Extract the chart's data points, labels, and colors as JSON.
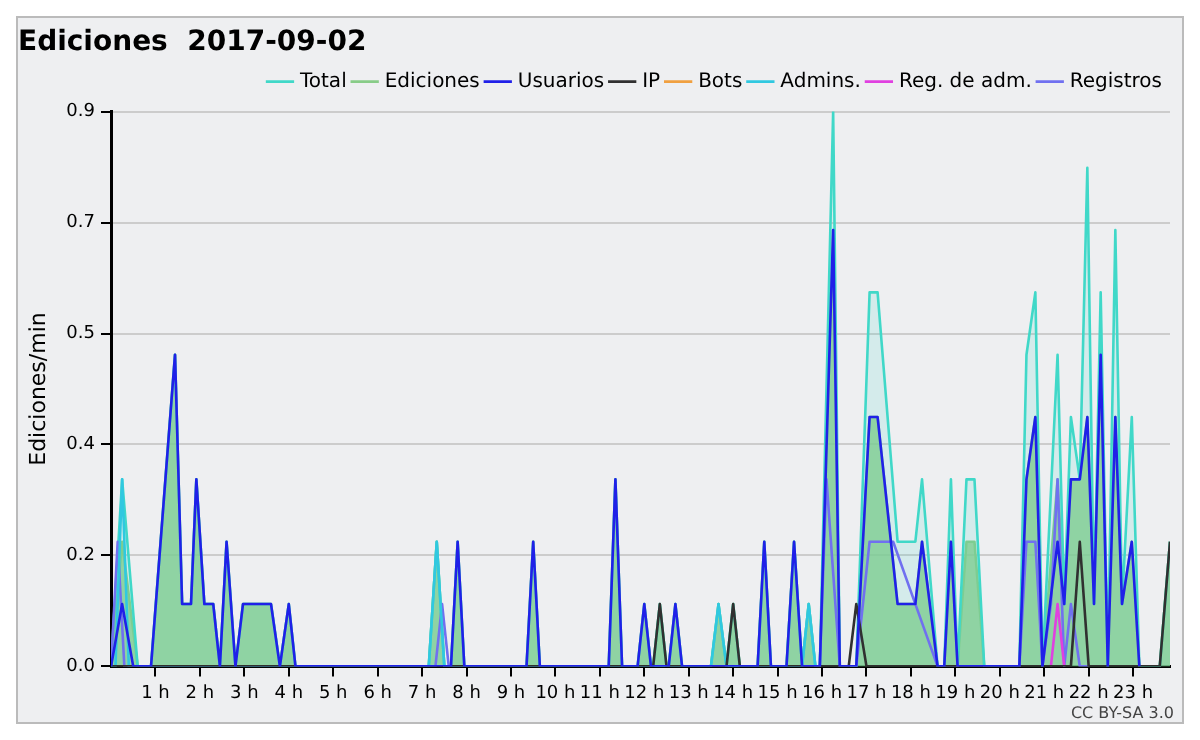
{
  "chart_data": {
    "type": "line",
    "title": "Ediciones  2017-09-02",
    "ylabel": "Ediciones/min",
    "annotations": [
      "CC BY-SA 3.0"
    ],
    "xlim": [
      0,
      23.83
    ],
    "xticks": [
      {
        "value": 1,
        "label": "1 h"
      },
      {
        "value": 2,
        "label": "2 h"
      },
      {
        "value": 3,
        "label": "3 h"
      },
      {
        "value": 4,
        "label": "4 h"
      },
      {
        "value": 5,
        "label": "5 h"
      },
      {
        "value": 6,
        "label": "6 h"
      },
      {
        "value": 7,
        "label": "7 h"
      },
      {
        "value": 8,
        "label": "8 h"
      },
      {
        "value": 9,
        "label": "9 h"
      },
      {
        "value": 10,
        "label": "10 h"
      },
      {
        "value": 11,
        "label": "11 h"
      },
      {
        "value": 12,
        "label": "12 h"
      },
      {
        "value": 13,
        "label": "13 h"
      },
      {
        "value": 14,
        "label": "14 h"
      },
      {
        "value": 15,
        "label": "15 h"
      },
      {
        "value": 16,
        "label": "16 h"
      },
      {
        "value": 17,
        "label": "17 h"
      },
      {
        "value": 18,
        "label": "18 h"
      },
      {
        "value": 19,
        "label": "19 h"
      },
      {
        "value": 20,
        "label": "20 h"
      },
      {
        "value": 21,
        "label": "21 h"
      },
      {
        "value": 22,
        "label": "22 h"
      },
      {
        "value": 23,
        "label": "23 h"
      }
    ],
    "ylim": [
      0,
      0.89
    ],
    "yticks": [
      {
        "value": 0,
        "label": "0.0"
      },
      {
        "value": 0.178,
        "label": "0.2"
      },
      {
        "value": 0.356,
        "label": "0.4"
      },
      {
        "value": 0.534,
        "label": "0.5"
      },
      {
        "value": 0.712,
        "label": "0.7"
      },
      {
        "value": 0.89,
        "label": "0.9"
      }
    ],
    "grid": "y",
    "legend": "top right",
    "marker": "none",
    "line_style": "solid",
    "series": [
      {
        "name": "Total",
        "type": "area",
        "color": "#40d8c8",
        "x": [
          0,
          0.25,
          0.6,
          0.9,
          1.44,
          1.6,
          1.8,
          1.92,
          2.1,
          2.3,
          2.45,
          2.6,
          2.8,
          2.97,
          3.6,
          3.8,
          4.0,
          4.15,
          7.15,
          7.33,
          7.5,
          7.65,
          7.8,
          7.95,
          9.35,
          9.5,
          9.65,
          11.2,
          11.35,
          11.5,
          11.85,
          12.0,
          12.15,
          12.2,
          12.35,
          12.5,
          12.55,
          12.7,
          12.85,
          13.5,
          13.67,
          13.85,
          14.0,
          14.15,
          14.55,
          14.7,
          14.85,
          15.2,
          15.37,
          15.55,
          15.7,
          15.85,
          15.95,
          16.25,
          16.4,
          16.77,
          17.07,
          17.25,
          17.7,
          18.1,
          18.25,
          18.6,
          18.75,
          18.9,
          19.05,
          19.25,
          19.43,
          19.65,
          20.44,
          20.6,
          20.8,
          20.96,
          21.3,
          21.45,
          21.6,
          21.8,
          21.97,
          22.12,
          22.27,
          22.43,
          22.6,
          22.75,
          22.97,
          23.14,
          23.6,
          23.83
        ],
        "values": [
          0,
          0.3,
          0,
          0,
          0.5,
          0.1,
          0.1,
          0.3,
          0.1,
          0.1,
          0,
          0.2,
          0,
          0.1,
          0.1,
          0,
          0.1,
          0,
          0,
          0.2,
          0,
          0,
          0.2,
          0,
          0,
          0.2,
          0,
          0,
          0.3,
          0,
          0,
          0.1,
          0,
          0,
          0.1,
          0,
          0,
          0.1,
          0,
          0,
          0.1,
          0,
          0.1,
          0,
          0,
          0.2,
          0,
          0,
          0.2,
          0,
          0.1,
          0,
          0,
          0.89,
          0,
          0,
          0.6,
          0.6,
          0.2,
          0.2,
          0.3,
          0,
          0,
          0.3,
          0,
          0.3,
          0.3,
          0,
          0,
          0.5,
          0.6,
          0,
          0.5,
          0.1,
          0.4,
          0.3,
          0.8,
          0.1,
          0.6,
          0,
          0.7,
          0.1,
          0.4,
          0,
          0,
          0.2
        ]
      },
      {
        "name": "Ediciones",
        "type": "area",
        "color": "#88cc88",
        "x": [
          0,
          0.25,
          0.6,
          0.9,
          1.44,
          1.6,
          1.8,
          1.92,
          2.1,
          2.3,
          2.45,
          2.6,
          2.8,
          2.97,
          3.6,
          3.8,
          4.0,
          4.15,
          7.15,
          7.33,
          7.5,
          7.65,
          7.8,
          7.95,
          9.35,
          9.5,
          9.65,
          11.2,
          11.35,
          11.5,
          11.85,
          12.0,
          12.15,
          12.2,
          12.35,
          12.5,
          12.55,
          12.7,
          12.85,
          13.5,
          13.67,
          13.85,
          14.0,
          14.15,
          14.55,
          14.7,
          14.85,
          15.2,
          15.37,
          15.55,
          15.7,
          15.85,
          15.95,
          16.25,
          16.4,
          16.77,
          17.07,
          17.25,
          17.7,
          18.1,
          18.25,
          18.6,
          18.75,
          18.9,
          19.05,
          19.25,
          19.43,
          19.65,
          20.44,
          20.6,
          20.8,
          20.96,
          21.3,
          21.45,
          21.6,
          21.8,
          21.97,
          22.12,
          22.27,
          22.43,
          22.6,
          22.75,
          22.97,
          23.14,
          23.6,
          23.83
        ],
        "values": [
          0,
          0.2,
          0,
          0,
          0.5,
          0.1,
          0.1,
          0.3,
          0.1,
          0.1,
          0,
          0.2,
          0,
          0.1,
          0.1,
          0,
          0.1,
          0,
          0,
          0.2,
          0,
          0,
          0.2,
          0,
          0,
          0.2,
          0,
          0,
          0.3,
          0,
          0,
          0.1,
          0,
          0,
          0.1,
          0,
          0,
          0.1,
          0,
          0,
          0.1,
          0,
          0.1,
          0,
          0,
          0.2,
          0,
          0,
          0.2,
          0,
          0.1,
          0,
          0,
          0.7,
          0,
          0,
          0.4,
          0.4,
          0.1,
          0.1,
          0.2,
          0,
          0,
          0.2,
          0,
          0.2,
          0.2,
          0,
          0,
          0.3,
          0.4,
          0,
          0.3,
          0.1,
          0.3,
          0.3,
          0.4,
          0.1,
          0.5,
          0,
          0.4,
          0.1,
          0.2,
          0,
          0,
          0.2
        ]
      },
      {
        "name": "Usuarios",
        "type": "line",
        "color": "#2020e8",
        "x": [
          0,
          0.25,
          0.5,
          0.9,
          1.44,
          1.6,
          1.8,
          1.92,
          2.1,
          2.3,
          2.45,
          2.6,
          2.8,
          2.97,
          3.6,
          3.8,
          4.0,
          4.15,
          7.65,
          7.8,
          7.95,
          9.35,
          9.5,
          9.65,
          11.2,
          11.35,
          11.5,
          11.85,
          12.0,
          12.15,
          12.55,
          12.7,
          12.85,
          14.55,
          14.7,
          14.85,
          15.2,
          15.37,
          15.55,
          15.95,
          16.25,
          16.4,
          16.77,
          17.07,
          17.25,
          17.7,
          18.1,
          18.25,
          18.6,
          18.75,
          18.9,
          19.05,
          20.44,
          20.6,
          20.8,
          20.96,
          21.3,
          21.45,
          21.6,
          21.8,
          21.97,
          22.12,
          22.27,
          22.43,
          22.6,
          22.75,
          22.97,
          23.14
        ],
        "values": [
          0,
          0.1,
          0,
          0,
          0.5,
          0.1,
          0.1,
          0.3,
          0.1,
          0.1,
          0,
          0.2,
          0,
          0.1,
          0.1,
          0,
          0.1,
          0,
          0,
          0.2,
          0,
          0,
          0.2,
          0,
          0,
          0.3,
          0,
          0,
          0.1,
          0,
          0,
          0.1,
          0,
          0,
          0.2,
          0,
          0,
          0.2,
          0,
          0,
          0.7,
          0,
          0,
          0.4,
          0.4,
          0.1,
          0.1,
          0.2,
          0,
          0,
          0.2,
          0,
          0,
          0.3,
          0.4,
          0,
          0.2,
          0.1,
          0.3,
          0.3,
          0.4,
          0.1,
          0.5,
          0,
          0.4,
          0.1,
          0.2,
          0
        ]
      },
      {
        "name": "IP",
        "type": "line",
        "color": "#303030",
        "x": [
          0,
          12.2,
          12.35,
          12.5,
          13.85,
          14.0,
          14.15,
          16.6,
          16.77,
          17.0,
          21.6,
          21.8,
          22.0,
          23.6,
          23.83
        ],
        "values": [
          0,
          0,
          0.1,
          0,
          0,
          0.1,
          0,
          0,
          0.1,
          0,
          0,
          0.2,
          0,
          0,
          0.2
        ]
      },
      {
        "name": "Bots",
        "type": "line",
        "color": "#f0a040"
      },
      {
        "name": "Admins.",
        "type": "line",
        "color": "#30c8e0",
        "x": [
          0,
          0.1,
          0.25,
          0.4,
          7.15,
          7.33,
          7.5,
          13.5,
          13.67,
          13.85,
          15.55,
          15.7,
          15.85
        ],
        "values": [
          0,
          0,
          0.3,
          0,
          0,
          0.2,
          0,
          0,
          0.1,
          0,
          0,
          0.1,
          0
        ]
      },
      {
        "name": "Reg. de adm.",
        "type": "line",
        "color": "#e040e0",
        "x": [
          21.15,
          21.3,
          21.45
        ],
        "values": [
          0,
          0.1,
          0
        ]
      },
      {
        "name": "Registros",
        "type": "line",
        "color": "#7070f0",
        "x": [
          0,
          0.15,
          0.3,
          0.45,
          7.3,
          7.45,
          7.6,
          15.95,
          16.1,
          16.4,
          16.77,
          17.07,
          17.6,
          18.1,
          18.6,
          20.44,
          20.6,
          20.8,
          20.96,
          21.15,
          21.3,
          21.45,
          21.6,
          21.8,
          22.0
        ],
        "values": [
          0,
          0.2,
          0,
          0,
          0,
          0.1,
          0,
          0,
          0.3,
          0,
          0,
          0.2,
          0.2,
          0.1,
          0,
          0,
          0.2,
          0.2,
          0,
          0.1,
          0.3,
          0,
          0.1,
          0,
          0
        ]
      }
    ]
  }
}
